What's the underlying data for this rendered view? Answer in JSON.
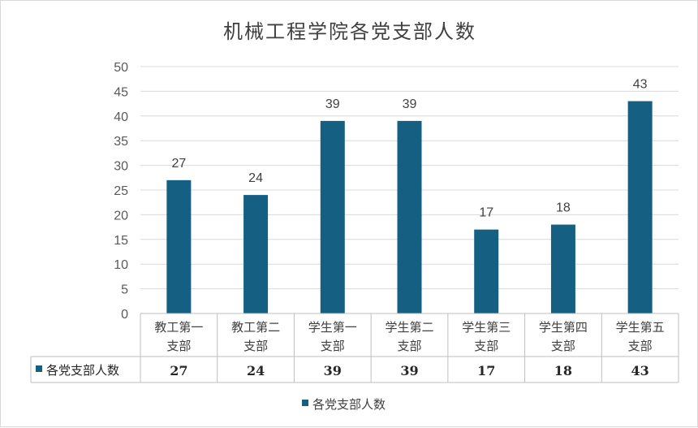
{
  "chart_data": {
    "type": "bar",
    "title": "机械工程学院各党支部人数",
    "categories": [
      [
        "教工第一",
        "支部"
      ],
      [
        "教工第二",
        "支部"
      ],
      [
        "学生第一",
        "支部"
      ],
      [
        "学生第二",
        "支部"
      ],
      [
        "学生第三",
        "支部"
      ],
      [
        "学生第四",
        "支部"
      ],
      [
        "学生第五",
        "支部"
      ]
    ],
    "series": [
      {
        "name": "各党支部人数",
        "values": [
          27,
          24,
          39,
          39,
          17,
          18,
          43
        ]
      }
    ],
    "ylim": [
      0,
      50
    ],
    "yticks": [
      0,
      5,
      10,
      15,
      20,
      25,
      30,
      35,
      40,
      45,
      50
    ],
    "grid": true,
    "data_table": true,
    "legend": "bottom",
    "colors": {
      "bar": "#156082",
      "grid": "#d9d9d9",
      "axis": "#bfbfbf"
    }
  }
}
